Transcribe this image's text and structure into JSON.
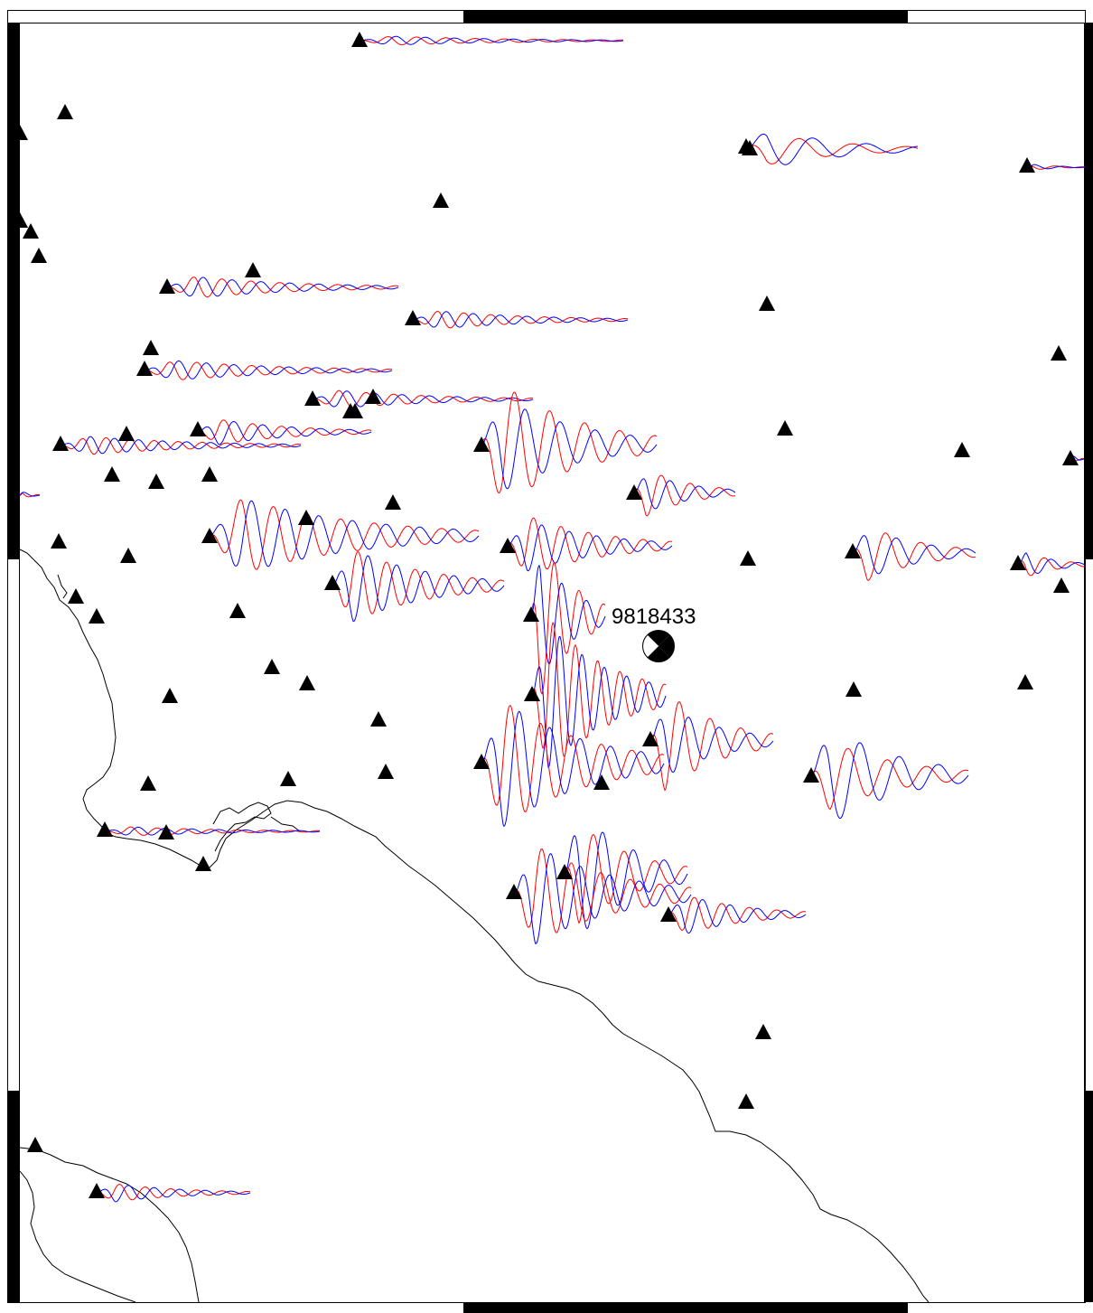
{
  "event": {
    "id": "9818433"
  },
  "colors": {
    "observed": "#ff0000",
    "synthetic": "#0000ff",
    "station": "#000000",
    "coast": "#000000"
  },
  "legend": {
    "station_symbol": "triangle-icon",
    "event_symbol": "beachball-icon"
  }
}
